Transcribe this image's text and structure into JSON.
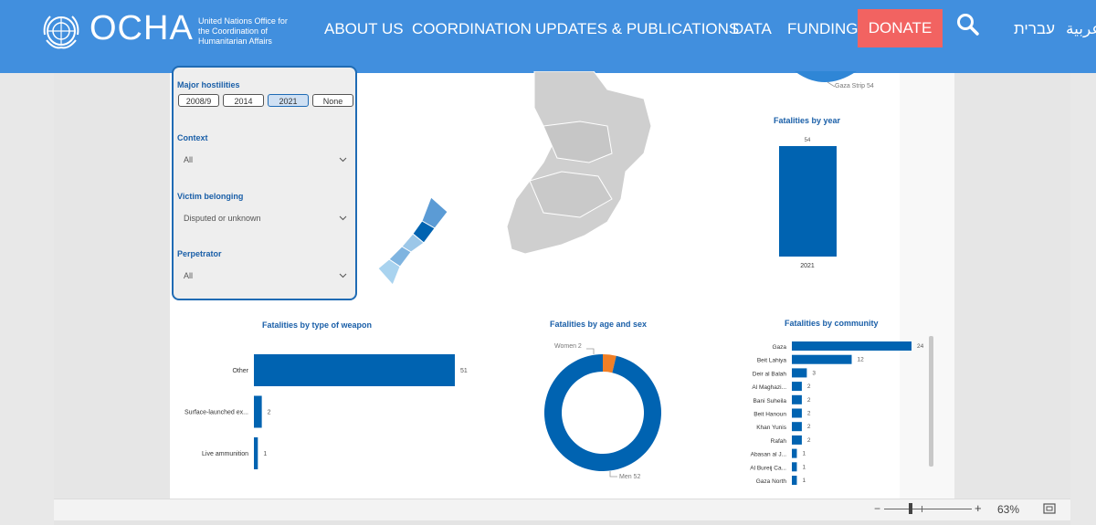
{
  "header": {
    "logo": "OCHA",
    "logo_sub": "United Nations Office for the Coordination of Humanitarian Affairs",
    "nav": [
      "ABOUT US",
      "COORDINATION",
      "UPDATES & PUBLICATIONS",
      "DATA",
      "FUNDING"
    ],
    "donate": "DONATE",
    "lang_he": "עברית",
    "lang_ar": "عربية"
  },
  "colors": {
    "header": "#418fde",
    "donate": "#f26361",
    "bar": "#0063b1",
    "accent_orange": "#f07f26"
  },
  "filters": {
    "major_hostilities_label": "Major hostilities",
    "hostility_options": [
      "2008/9",
      "2014",
      "2021",
      "None"
    ],
    "hostility_selected": "2021",
    "context_label": "Context",
    "context_value": "All",
    "victim_label": "Victim belonging",
    "victim_value": "Disputed or unknown",
    "perpetrator_label": "Perpetrator",
    "perpetrator_value": "All"
  },
  "map": {
    "gaza_strip_label": "Gaza Strip 54"
  },
  "zoom": {
    "level": "63%",
    "slider_fraction": 0.3
  },
  "chart_data": [
    {
      "type": "bar",
      "title": "Fatalities by year",
      "categories": [
        "2021"
      ],
      "values": [
        54
      ]
    },
    {
      "type": "bar",
      "title": "Fatalities by type of weapon",
      "orientation": "horizontal",
      "categories": [
        "Other",
        "Surface-launched ex...",
        "Live ammunition"
      ],
      "values": [
        51,
        2,
        1
      ]
    },
    {
      "type": "pie",
      "title": "Fatalities by age and sex",
      "donut": true,
      "categories": [
        "Women",
        "Men"
      ],
      "values": [
        2,
        52
      ],
      "labels": [
        "Women 2",
        "Men 52"
      ]
    },
    {
      "type": "bar",
      "title": "Fatalities by community",
      "orientation": "horizontal",
      "categories": [
        "Gaza",
        "Beit Lahiya",
        "Deir al Balah",
        "Al Maghazi...",
        "Bani Suheila",
        "Beit Hanoun",
        "Khan Yunis",
        "Rafah",
        "Abasan al J...",
        "Al Bureij Ca...",
        "Gaza North"
      ],
      "values": [
        24,
        12,
        3,
        2,
        2,
        2,
        2,
        2,
        1,
        1,
        1
      ]
    }
  ]
}
